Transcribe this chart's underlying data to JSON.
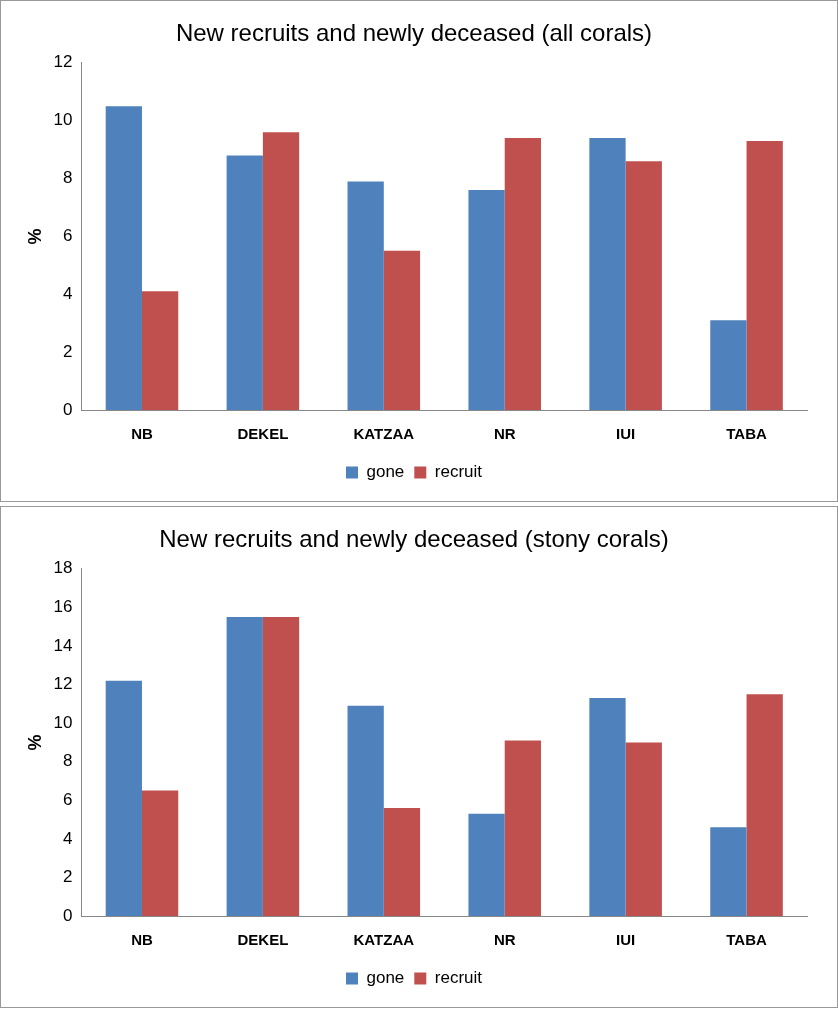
{
  "chart_data": [
    {
      "type": "bar",
      "title": "New recruits and newly deceased (all corals)",
      "ylabel": "%",
      "categories": [
        "NB",
        "DEKEL",
        "KATZAA",
        "NR",
        "IUI",
        "TABA"
      ],
      "series": [
        {
          "name": "gone",
          "color": "#4f81bd",
          "values": [
            10.5,
            8.8,
            7.9,
            7.6,
            9.4,
            3.1
          ]
        },
        {
          "name": "recruit",
          "color": "#c0504d",
          "values": [
            4.1,
            9.6,
            5.5,
            9.4,
            8.6,
            9.3
          ]
        }
      ],
      "ylim": [
        0,
        12
      ],
      "yticks": [
        0,
        2,
        4,
        6,
        8,
        10,
        12
      ],
      "grid": false,
      "legend": "bottom"
    },
    {
      "type": "bar",
      "title": "New recruits and newly deceased (stony corals)",
      "ylabel": "%",
      "categories": [
        "NB",
        "DEKEL",
        "KATZAA",
        "NR",
        "IUI",
        "TABA"
      ],
      "series": [
        {
          "name": "gone",
          "color": "#4f81bd",
          "values": [
            12.2,
            15.5,
            10.9,
            5.3,
            11.3,
            4.6
          ]
        },
        {
          "name": "recruit",
          "color": "#c0504d",
          "values": [
            6.5,
            15.5,
            5.6,
            9.1,
            9.0,
            11.5
          ]
        }
      ],
      "ylim": [
        0,
        18
      ],
      "yticks": [
        0,
        2,
        4,
        6,
        8,
        10,
        12,
        14,
        16,
        18
      ],
      "grid": false,
      "legend": "bottom"
    }
  ]
}
